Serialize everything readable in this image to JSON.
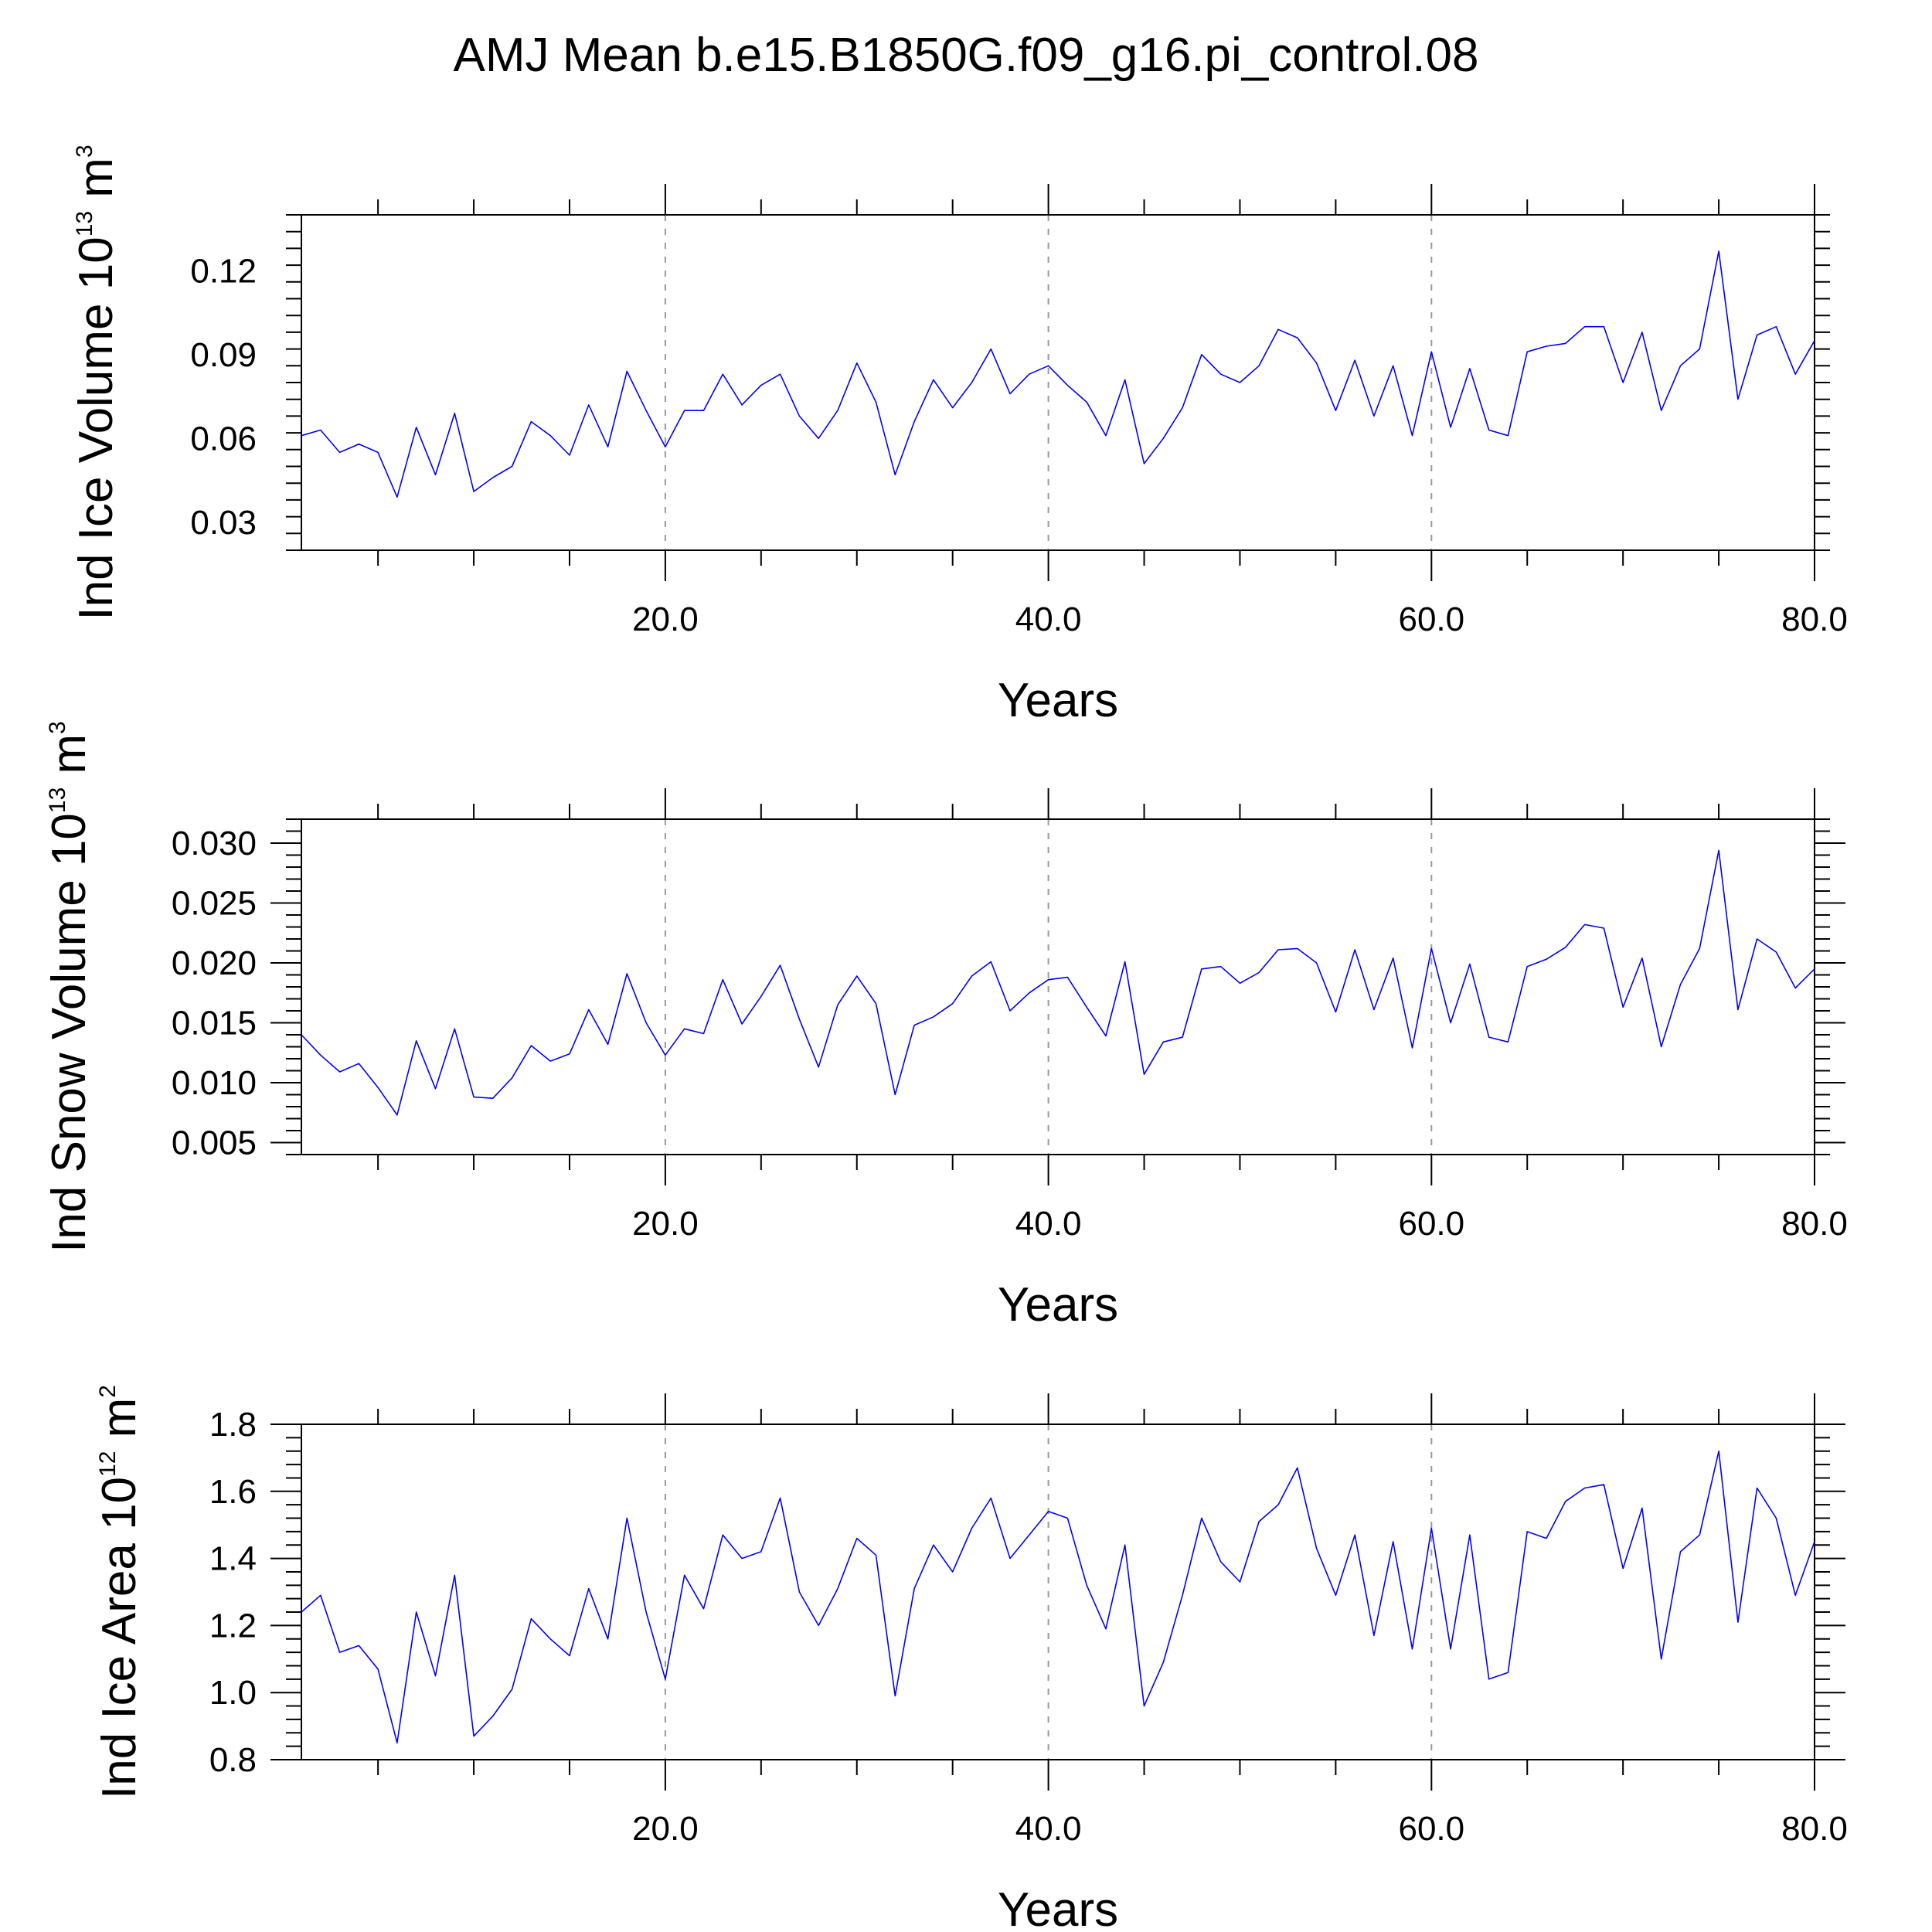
{
  "title": "AMJ Mean b.e15.B1850G.f09_g16.pi_control.08",
  "colors": {
    "series": "#0000ff",
    "frame": "#000000",
    "grid": "#999999"
  },
  "chart_data": [
    {
      "type": "line",
      "ylabel": {
        "base": "Ind Ice Volume 10",
        "exp": "13",
        "unit": " m",
        "unit_exp": "3"
      },
      "xlabel": "Years",
      "xlim": [
        1,
        80
      ],
      "ylim": [
        0.02,
        0.14
      ],
      "xticks": [
        20,
        40,
        60,
        80
      ],
      "xtick_labels": [
        "20.0",
        "40.0",
        "60.0",
        "80.0"
      ],
      "yticks": [
        0.03,
        0.06,
        0.09,
        0.12
      ],
      "ytick_labels": [
        "0.03",
        "0.06",
        "0.09",
        "0.12"
      ],
      "grid": "dashed vertical at major x ticks",
      "x_start": 1,
      "values": [
        0.061,
        0.063,
        0.055,
        0.058,
        0.055,
        0.039,
        0.064,
        0.047,
        0.069,
        0.041,
        0.046,
        0.05,
        0.066,
        0.061,
        0.054,
        0.072,
        0.057,
        0.084,
        0.07,
        0.057,
        0.07,
        0.07,
        0.083,
        0.072,
        0.079,
        0.083,
        0.068,
        0.06,
        0.07,
        0.087,
        0.073,
        0.047,
        0.066,
        0.081,
        0.071,
        0.08,
        0.092,
        0.076,
        0.083,
        0.086,
        0.079,
        0.073,
        0.061,
        0.081,
        0.051,
        0.06,
        0.071,
        0.09,
        0.083,
        0.08,
        0.086,
        0.099,
        0.096,
        0.087,
        0.07,
        0.088,
        0.068,
        0.086,
        0.061,
        0.091,
        0.064,
        0.085,
        0.063,
        0.061,
        0.091,
        0.093,
        0.094,
        0.1,
        0.1,
        0.08,
        0.098,
        0.07,
        0.086,
        0.092,
        0.127,
        0.074,
        0.097,
        0.1,
        0.083,
        0.095
      ]
    },
    {
      "type": "line",
      "ylabel": {
        "base": "Ind Snow Volume 10",
        "exp": "13",
        "unit": " m",
        "unit_exp": "3"
      },
      "xlabel": "Years",
      "xlim": [
        1,
        80
      ],
      "ylim": [
        0.004,
        0.032
      ],
      "xticks": [
        20,
        40,
        60,
        80
      ],
      "xtick_labels": [
        "20.0",
        "40.0",
        "60.0",
        "80.0"
      ],
      "yticks": [
        0.005,
        0.01,
        0.015,
        0.02,
        0.025,
        0.03
      ],
      "ytick_labels": [
        "0.005",
        "0.010",
        "0.015",
        "0.020",
        "0.025",
        "0.030"
      ],
      "grid": "dashed vertical at major x ticks",
      "x_start": 1,
      "values": [
        0.014,
        0.0123,
        0.0109,
        0.0116,
        0.0096,
        0.0073,
        0.0135,
        0.0095,
        0.0145,
        0.0088,
        0.0087,
        0.0104,
        0.0131,
        0.0118,
        0.0124,
        0.0161,
        0.0132,
        0.0191,
        0.015,
        0.0123,
        0.0145,
        0.0141,
        0.0186,
        0.0149,
        0.0172,
        0.0198,
        0.0153,
        0.0113,
        0.0165,
        0.0189,
        0.0166,
        0.009,
        0.0148,
        0.0155,
        0.0166,
        0.0189,
        0.0201,
        0.016,
        0.0175,
        0.0186,
        0.0188,
        0.0163,
        0.0139,
        0.0201,
        0.0107,
        0.0134,
        0.0138,
        0.0195,
        0.0197,
        0.0183,
        0.0192,
        0.0211,
        0.0212,
        0.02,
        0.0159,
        0.0211,
        0.0161,
        0.0204,
        0.0129,
        0.0212,
        0.015,
        0.0199,
        0.0138,
        0.0134,
        0.0197,
        0.0203,
        0.0213,
        0.0232,
        0.0229,
        0.0163,
        0.0204,
        0.013,
        0.0182,
        0.0212,
        0.0294,
        0.0161,
        0.022,
        0.0209,
        0.0179,
        0.0195
      ]
    },
    {
      "type": "line",
      "ylabel": {
        "base": "Ind Ice Area 10",
        "exp": "12",
        "unit": " m",
        "unit_exp": "2"
      },
      "xlabel": "Years",
      "xlim": [
        1,
        80
      ],
      "ylim": [
        0.8,
        1.8
      ],
      "xticks": [
        20,
        40,
        60,
        80
      ],
      "xtick_labels": [
        "20.0",
        "40.0",
        "60.0",
        "80.0"
      ],
      "yticks": [
        0.8,
        1.0,
        1.2,
        1.4,
        1.6,
        1.8
      ],
      "ytick_labels": [
        "0.8",
        "1.0",
        "1.2",
        "1.4",
        "1.6",
        "1.8"
      ],
      "grid": "dashed vertical at major x ticks",
      "x_start": 1,
      "values": [
        1.24,
        1.29,
        1.12,
        1.14,
        1.07,
        0.85,
        1.24,
        1.05,
        1.35,
        0.87,
        0.93,
        1.01,
        1.22,
        1.16,
        1.11,
        1.31,
        1.16,
        1.52,
        1.24,
        1.04,
        1.35,
        1.25,
        1.47,
        1.4,
        1.42,
        1.58,
        1.3,
        1.2,
        1.31,
        1.46,
        1.41,
        0.99,
        1.31,
        1.44,
        1.36,
        1.49,
        1.58,
        1.4,
        1.47,
        1.54,
        1.52,
        1.32,
        1.19,
        1.44,
        0.96,
        1.09,
        1.29,
        1.52,
        1.39,
        1.33,
        1.51,
        1.56,
        1.67,
        1.43,
        1.29,
        1.47,
        1.17,
        1.45,
        1.13,
        1.49,
        1.13,
        1.47,
        1.04,
        1.06,
        1.48,
        1.46,
        1.57,
        1.61,
        1.62,
        1.37,
        1.55,
        1.1,
        1.42,
        1.47,
        1.72,
        1.21,
        1.61,
        1.52,
        1.29,
        1.45
      ]
    }
  ]
}
